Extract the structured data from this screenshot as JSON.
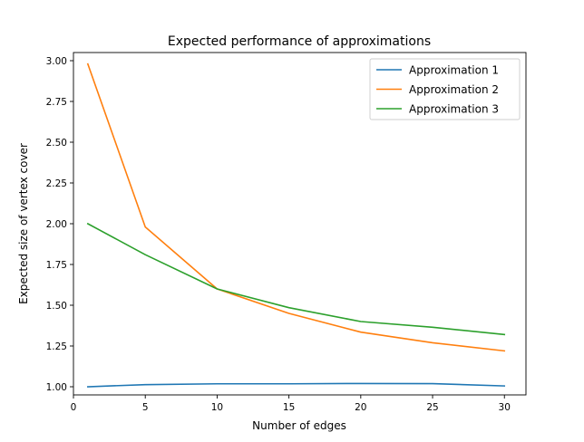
{
  "chart_data": {
    "type": "line",
    "title": "Expected performance of approximations",
    "xlabel": "Number of edges",
    "ylabel": "Expected size of vertex cover",
    "x": [
      1,
      5,
      10,
      15,
      20,
      25,
      30
    ],
    "xlim": [
      0.0,
      31.5
    ],
    "ylim": [
      0.95,
      3.05
    ],
    "xticks": [
      0,
      5,
      10,
      15,
      20,
      25,
      30
    ],
    "yticks": [
      1.0,
      1.25,
      1.5,
      1.75,
      2.0,
      2.25,
      2.5,
      2.75,
      3.0
    ],
    "ytick_labels": [
      "1.00",
      "1.25",
      "1.50",
      "1.75",
      "2.00",
      "2.25",
      "2.50",
      "2.75",
      "3.00"
    ],
    "grid": false,
    "legend_position": "top-right",
    "series": [
      {
        "name": "Approximation 1",
        "color": "#1f77b4",
        "values": [
          1.0,
          1.013,
          1.018,
          1.018,
          1.02,
          1.019,
          1.005
        ]
      },
      {
        "name": "Approximation 2",
        "color": "#ff7f0e",
        "values": [
          2.98,
          1.98,
          1.6,
          1.45,
          1.335,
          1.27,
          1.22
        ]
      },
      {
        "name": "Approximation 3",
        "color": "#2ca02c",
        "values": [
          2.0,
          1.81,
          1.6,
          1.485,
          1.4,
          1.365,
          1.32
        ]
      }
    ]
  }
}
